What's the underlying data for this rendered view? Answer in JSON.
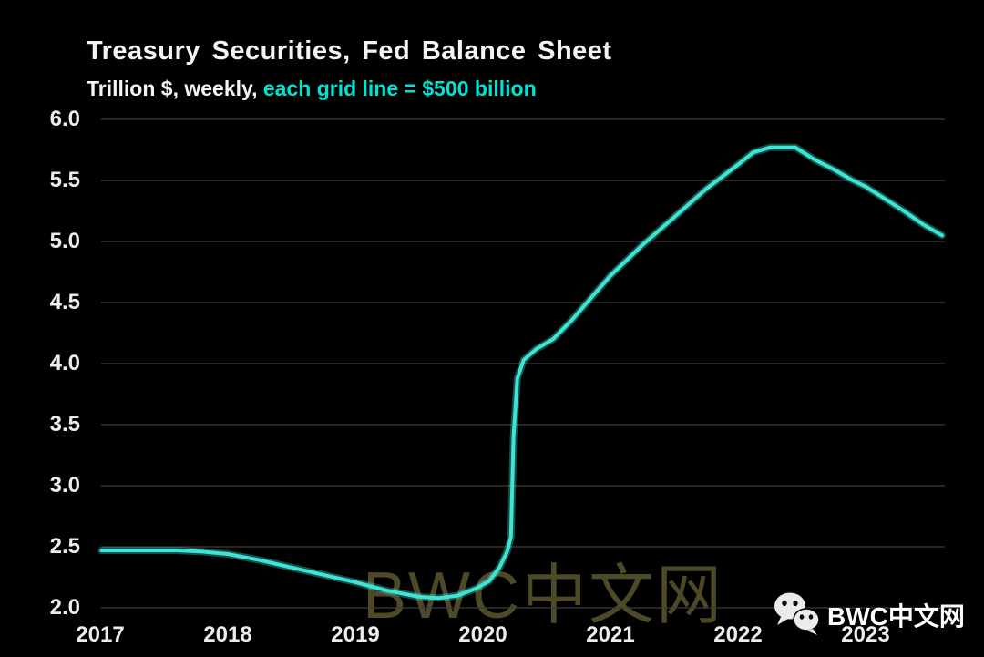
{
  "header": {
    "title": "Treasury Securities, Fed Balance Sheet",
    "subtitle_plain": "Trillion $, weekly, ",
    "subtitle_highlight": "each grid line = $500 billion"
  },
  "chart_data": {
    "type": "line",
    "title": "Treasury Securities, Fed Balance Sheet",
    "subtitle": "Trillion $, weekly, each grid line = $500 billion",
    "ylabel": "Trillion $",
    "xlabel": "",
    "frequency": "weekly",
    "grid_interval": "$500 billion",
    "legend_position": "none",
    "grid": "horizontal-only",
    "x_tick_labels": [
      "2017",
      "2018",
      "2019",
      "2020",
      "2021",
      "2022",
      "2023"
    ],
    "y_tick_labels": [
      "6.0",
      "5.5",
      "5.0",
      "4.5",
      "4.0",
      "3.5",
      "3.0",
      "2.5",
      "2.0"
    ],
    "y_ticks": [
      6.0,
      5.5,
      5.0,
      4.5,
      4.0,
      3.5,
      3.0,
      2.5,
      2.0
    ],
    "x_range": [
      2017.0,
      2023.62
    ],
    "y_range_shown": [
      2.0,
      6.0
    ],
    "series": [
      {
        "name": "Treasury securities held on Fed balance sheet (trillion $)",
        "points": [
          [
            2017.01,
            2.47
          ],
          [
            2017.3,
            2.47
          ],
          [
            2017.6,
            2.47
          ],
          [
            2017.8,
            2.46
          ],
          [
            2018.0,
            2.44
          ],
          [
            2018.25,
            2.39
          ],
          [
            2018.5,
            2.33
          ],
          [
            2018.75,
            2.27
          ],
          [
            2019.0,
            2.21
          ],
          [
            2019.25,
            2.14
          ],
          [
            2019.5,
            2.09
          ],
          [
            2019.65,
            2.08
          ],
          [
            2019.8,
            2.1
          ],
          [
            2019.95,
            2.16
          ],
          [
            2020.05,
            2.22
          ],
          [
            2020.13,
            2.33
          ],
          [
            2020.19,
            2.46
          ],
          [
            2020.22,
            2.58
          ],
          [
            2020.24,
            3.4
          ],
          [
            2020.27,
            3.88
          ],
          [
            2020.32,
            4.03
          ],
          [
            2020.42,
            4.12
          ],
          [
            2020.55,
            4.2
          ],
          [
            2020.7,
            4.36
          ],
          [
            2020.85,
            4.54
          ],
          [
            2021.0,
            4.72
          ],
          [
            2021.25,
            4.97
          ],
          [
            2021.5,
            5.2
          ],
          [
            2021.75,
            5.43
          ],
          [
            2022.0,
            5.63
          ],
          [
            2022.12,
            5.73
          ],
          [
            2022.25,
            5.77
          ],
          [
            2022.45,
            5.77
          ],
          [
            2022.6,
            5.67
          ],
          [
            2022.75,
            5.59
          ],
          [
            2022.9,
            5.5
          ],
          [
            2023.0,
            5.45
          ],
          [
            2023.15,
            5.35
          ],
          [
            2023.3,
            5.25
          ],
          [
            2023.45,
            5.14
          ],
          [
            2023.6,
            5.05
          ]
        ]
      }
    ],
    "line_color": "#40e4d5",
    "grid_color": "#3d3d3d",
    "background_color": "#000000",
    "tick_label_color": "#ececec"
  },
  "watermark": {
    "center_text": "BWC中文网"
  },
  "footer_logo": {
    "icon": "wechat-icon",
    "text": "BWC中文网"
  }
}
